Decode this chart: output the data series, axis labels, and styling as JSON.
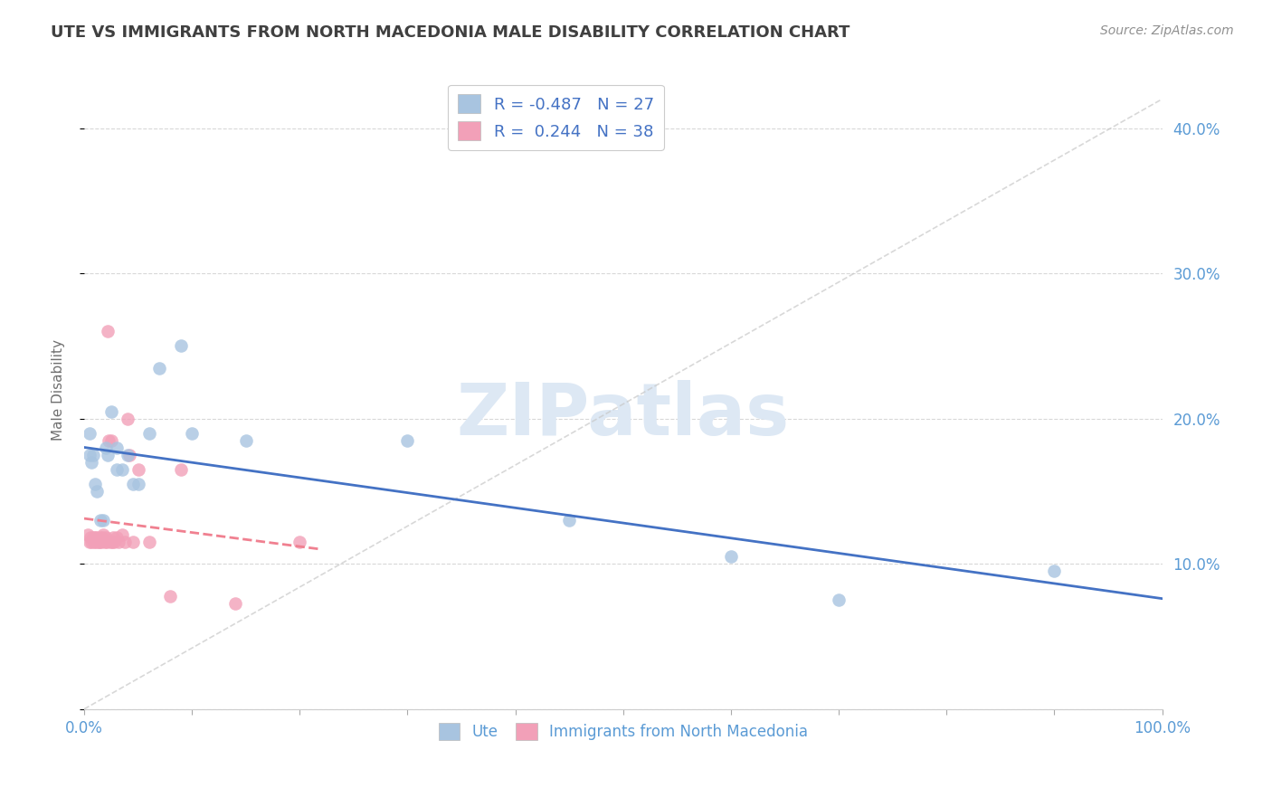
{
  "title": "UTE VS IMMIGRANTS FROM NORTH MACEDONIA MALE DISABILITY CORRELATION CHART",
  "source": "Source: ZipAtlas.com",
  "ylabel": "Male Disability",
  "xlim": [
    0.0,
    1.0
  ],
  "ylim": [
    0.0,
    0.44
  ],
  "xticks": [
    0.0,
    0.1,
    0.2,
    0.3,
    0.4,
    0.5,
    0.6,
    0.7,
    0.8,
    0.9,
    1.0
  ],
  "xticklabels": [
    "0.0%",
    "",
    "",
    "",
    "",
    "",
    "",
    "",
    "",
    "",
    "100.0%"
  ],
  "yticks": [
    0.0,
    0.1,
    0.2,
    0.3,
    0.4
  ],
  "yticklabels_right": [
    "",
    "10.0%",
    "20.0%",
    "30.0%",
    "40.0%"
  ],
  "legend_line1": "R = -0.487   N = 27",
  "legend_line2": "R =  0.244   N = 38",
  "color_ute": "#a8c4e0",
  "color_immig": "#f2a0b8",
  "color_line_ute": "#4472c4",
  "color_line_immig": "#f08090",
  "color_diag": "#c8c8c8",
  "color_title": "#404040",
  "color_axis_labels": "#5b9bd5",
  "color_legend_text": "#4472c4",
  "color_grid": "#d8d8d8",
  "watermark_text": "ZIPatlas",
  "watermark_color": "#dde8f4",
  "ute_x": [
    0.005,
    0.005,
    0.007,
    0.008,
    0.01,
    0.012,
    0.015,
    0.018,
    0.02,
    0.022,
    0.025,
    0.03,
    0.03,
    0.035,
    0.04,
    0.045,
    0.05,
    0.06,
    0.07,
    0.09,
    0.1,
    0.15,
    0.3,
    0.45,
    0.6,
    0.7,
    0.9
  ],
  "ute_y": [
    0.19,
    0.175,
    0.17,
    0.175,
    0.155,
    0.15,
    0.13,
    0.13,
    0.18,
    0.175,
    0.205,
    0.18,
    0.165,
    0.165,
    0.175,
    0.155,
    0.155,
    0.19,
    0.235,
    0.25,
    0.19,
    0.185,
    0.185,
    0.13,
    0.105,
    0.075,
    0.095
  ],
  "immig_x": [
    0.003,
    0.005,
    0.006,
    0.007,
    0.008,
    0.009,
    0.01,
    0.011,
    0.012,
    0.013,
    0.014,
    0.015,
    0.016,
    0.017,
    0.018,
    0.019,
    0.02,
    0.021,
    0.022,
    0.023,
    0.024,
    0.025,
    0.026,
    0.027,
    0.028,
    0.03,
    0.032,
    0.035,
    0.038,
    0.04,
    0.042,
    0.045,
    0.05,
    0.06,
    0.08,
    0.09,
    0.14,
    0.2
  ],
  "immig_y": [
    0.12,
    0.115,
    0.118,
    0.115,
    0.118,
    0.115,
    0.118,
    0.115,
    0.118,
    0.115,
    0.115,
    0.118,
    0.115,
    0.118,
    0.12,
    0.115,
    0.118,
    0.115,
    0.26,
    0.185,
    0.115,
    0.185,
    0.115,
    0.118,
    0.115,
    0.118,
    0.115,
    0.12,
    0.115,
    0.2,
    0.175,
    0.115,
    0.165,
    0.115,
    0.078,
    0.165,
    0.073,
    0.115
  ]
}
